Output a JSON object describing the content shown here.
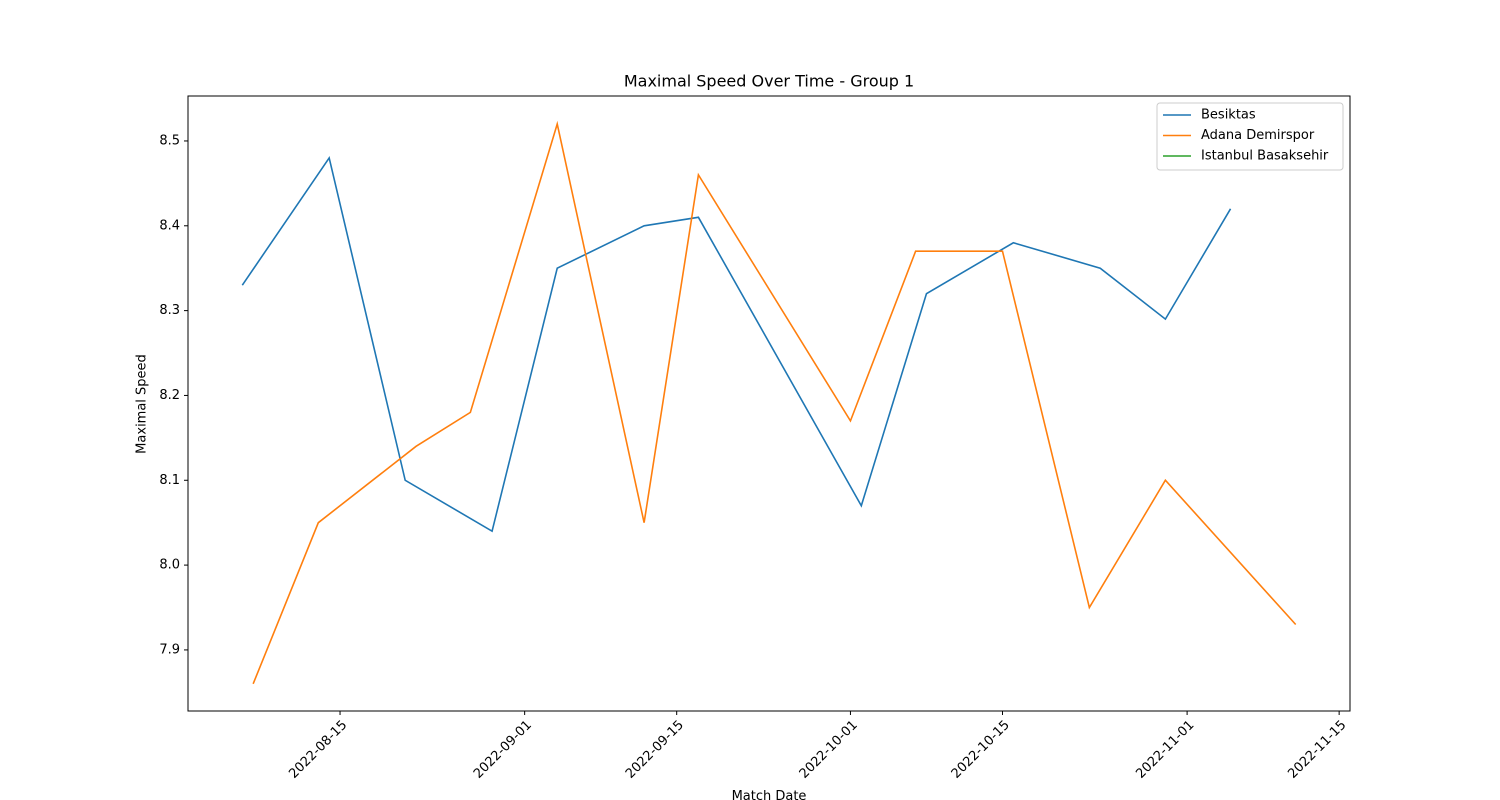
{
  "chart_data": {
    "type": "line",
    "title": "Maximal Speed Over Time - Group 1",
    "xlabel": "Match Date",
    "ylabel": "Maximal Speed",
    "xlim": [
      "2022-08-01",
      "2022-11-16"
    ],
    "xticks": [
      "2022-08-15",
      "2022-09-01",
      "2022-09-15",
      "2022-10-01",
      "2022-10-15",
      "2022-11-01",
      "2022-11-15"
    ],
    "ylim": [
      7.828,
      8.553
    ],
    "yticks": [
      7.9,
      {
        "value": 8,
        "label": "8.0"
      },
      8.1,
      8.2,
      8.3,
      8.4,
      8.5
    ],
    "legend": "upper right",
    "grid": false,
    "series": [
      {
        "name": "Besiktas",
        "color": "#1f77b4",
        "x": [
          "2022-08-06",
          "2022-08-14",
          "2022-08-21",
          "2022-08-29",
          "2022-09-04",
          "2022-09-12",
          "2022-09-17",
          "2022-10-02",
          "2022-10-08",
          "2022-10-16",
          "2022-10-24",
          "2022-10-30",
          "2022-11-05"
        ],
        "values": [
          8.33,
          8.48,
          8.1,
          8.04,
          8.35,
          8.4,
          8.41,
          8.07,
          8.32,
          8.38,
          8.35,
          8.29,
          8.42
        ]
      },
      {
        "name": "Adana Demirspor",
        "color": "#ff7f0e",
        "x": [
          "2022-08-07",
          "2022-08-13",
          "2022-08-22",
          "2022-08-27",
          "2022-09-04",
          "2022-09-12",
          "2022-09-17",
          "2022-10-01",
          "2022-10-07",
          "2022-10-15",
          "2022-10-23",
          "2022-10-30",
          "2022-11-11"
        ],
        "values": [
          7.86,
          8.05,
          8.14,
          8.18,
          8.52,
          8.05,
          8.46,
          8.17,
          8.37,
          8.37,
          7.95,
          8.1,
          7.93
        ]
      },
      {
        "name": "Istanbul Basaksehir",
        "color": "#2ca02c",
        "x": [],
        "values": []
      }
    ]
  }
}
